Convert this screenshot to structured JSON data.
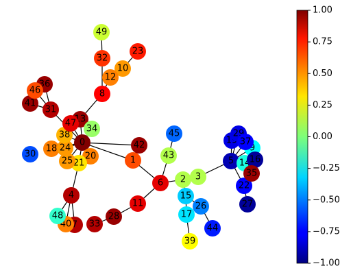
{
  "nodes": [
    {
      "label": "0",
      "value": 1.0
    },
    {
      "label": "1",
      "value": 0.6
    },
    {
      "label": "2",
      "value": 0.1
    },
    {
      "label": "3",
      "value": 0.1
    },
    {
      "label": "4",
      "value": 0.9
    },
    {
      "label": "5",
      "value": -0.9
    },
    {
      "label": "6",
      "value": 0.8
    },
    {
      "label": "7",
      "value": 0.9
    },
    {
      "label": "8",
      "value": 0.75
    },
    {
      "label": "9",
      "value": -0.25
    },
    {
      "label": "10",
      "value": 0.45
    },
    {
      "label": "11",
      "value": 0.8
    },
    {
      "label": "12",
      "value": 0.5
    },
    {
      "label": "13",
      "value": 0.95
    },
    {
      "label": "14",
      "value": -0.2
    },
    {
      "label": "15",
      "value": -0.35
    },
    {
      "label": "16",
      "value": -0.95
    },
    {
      "label": "17",
      "value": -0.3
    },
    {
      "label": "18",
      "value": 0.5
    },
    {
      "label": "19",
      "value": -0.8
    },
    {
      "label": "20",
      "value": 0.5
    },
    {
      "label": "21",
      "value": 0.3
    },
    {
      "label": "22",
      "value": -0.75
    },
    {
      "label": "23",
      "value": 0.7
    },
    {
      "label": "24",
      "value": 0.45
    },
    {
      "label": "25",
      "value": 0.45
    },
    {
      "label": "26",
      "value": -0.5
    },
    {
      "label": "27",
      "value": -0.95
    },
    {
      "label": "28",
      "value": 0.95
    },
    {
      "label": "29",
      "value": -0.8
    },
    {
      "label": "30",
      "value": -0.6
    },
    {
      "label": "31",
      "value": 0.9
    },
    {
      "label": "32",
      "value": 0.65
    },
    {
      "label": "33",
      "value": 0.9
    },
    {
      "label": "34",
      "value": 0.05
    },
    {
      "label": "35",
      "value": 0.95
    },
    {
      "label": "36",
      "value": 0.95
    },
    {
      "label": "37",
      "value": -0.75
    },
    {
      "label": "38",
      "value": 0.4
    },
    {
      "label": "39",
      "value": 0.25
    },
    {
      "label": "40",
      "value": 0.5
    },
    {
      "label": "41",
      "value": 0.95
    },
    {
      "label": "42",
      "value": 0.95
    },
    {
      "label": "43",
      "value": 0.1
    },
    {
      "label": "44",
      "value": -0.7
    },
    {
      "label": "45",
      "value": -0.55
    },
    {
      "label": "46",
      "value": 0.6
    },
    {
      "label": "47",
      "value": 0.8
    },
    {
      "label": "48",
      "value": -0.15
    },
    {
      "label": "49",
      "value": 0.15
    }
  ],
  "colorbar": {
    "lim": [
      -1,
      1
    ],
    "ticks": [
      {
        "value": 1,
        "label": "1.00"
      },
      {
        "value": 0.75,
        "label": "0.75"
      },
      {
        "value": 0.5,
        "label": "0.50"
      },
      {
        "value": 0.25,
        "label": "0.25"
      },
      {
        "value": 0,
        "label": "0.00"
      },
      {
        "value": -0.25,
        "label": "−0.25"
      },
      {
        "value": -0.5,
        "label": "−0.50"
      },
      {
        "value": -0.75,
        "label": "−0.75"
      },
      {
        "value": -1,
        "label": "−1.00"
      }
    ]
  }
}
